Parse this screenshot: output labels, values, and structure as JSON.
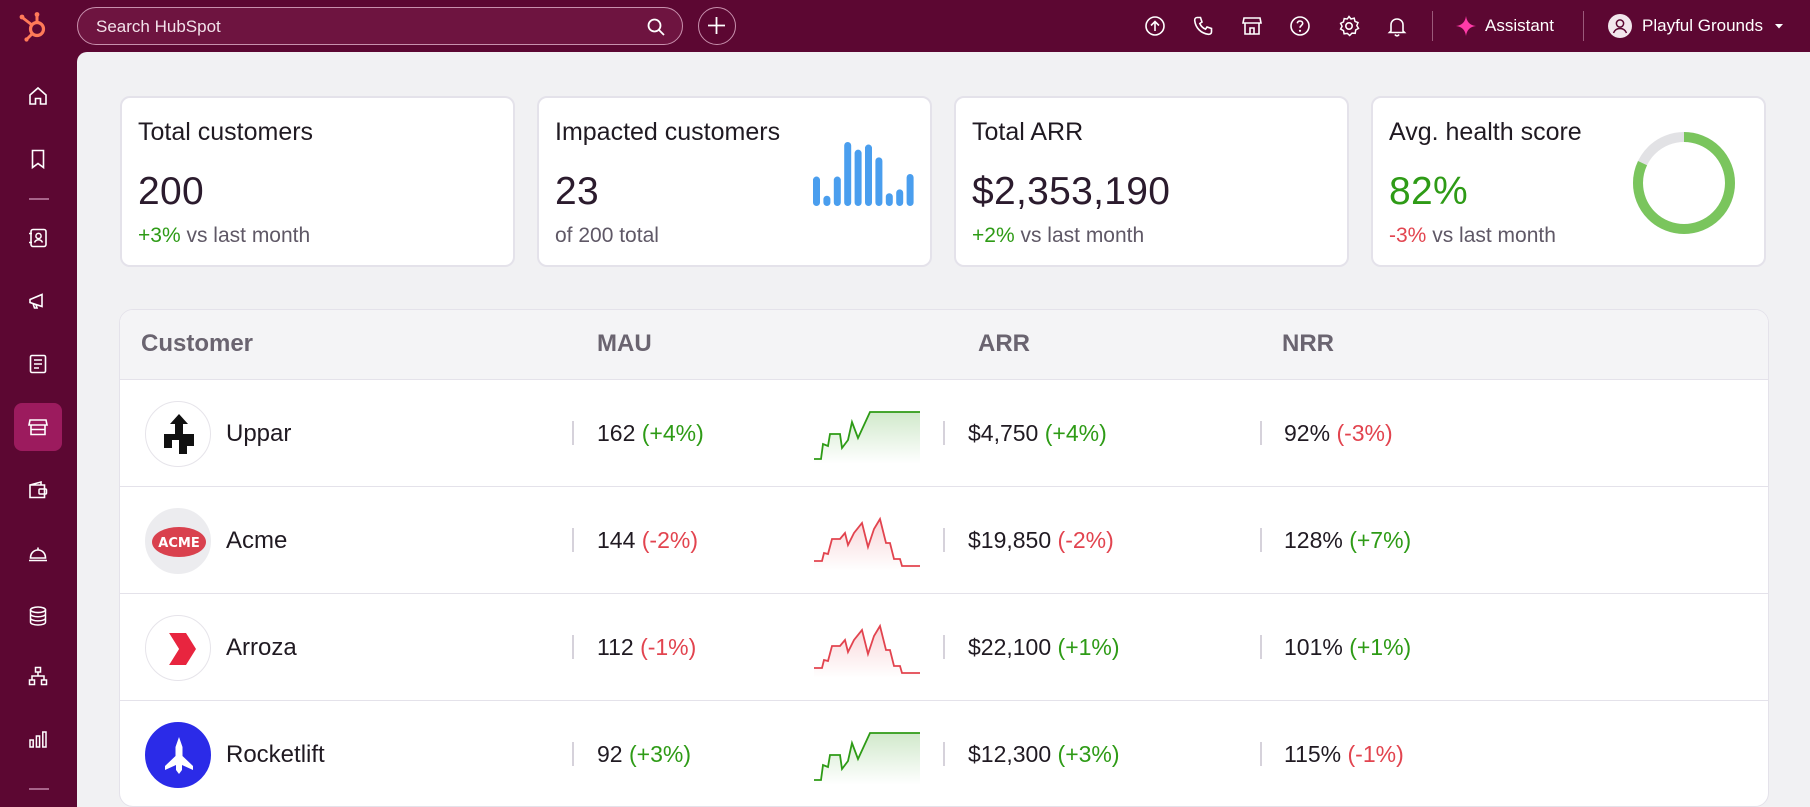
{
  "topbar": {
    "search_placeholder": "Search HubSpot",
    "assistant_label": "Assistant",
    "account_name": "Playful Grounds"
  },
  "cards": [
    {
      "title": "Total customers",
      "value": "200",
      "change": "+3%",
      "change_dir": "up",
      "suffix": "vs last month"
    },
    {
      "title": "Impacted customers",
      "value": "23",
      "subtitle": "of 200 total",
      "bars": [
        0.46,
        0.16,
        0.46,
        1.0,
        0.88,
        0.96,
        0.76,
        0.2,
        0.26,
        0.5
      ]
    },
    {
      "title": "Total ARR",
      "value": "$2,353,190",
      "change": "+2%",
      "change_dir": "up",
      "suffix": "vs last month"
    },
    {
      "title": "Avg. health score",
      "value": "82%",
      "change": "-3%",
      "change_dir": "down",
      "suffix": "vs last month",
      "gauge_fraction": 0.82
    }
  ],
  "table": {
    "headers": {
      "customer": "Customer",
      "mau": "MAU",
      "arr": "ARR",
      "nrr": "NRR"
    },
    "rows": [
      {
        "name": "Uppar",
        "logo_icon": "uppar-logo",
        "mau": "162",
        "mau_change": "(+4%)",
        "mau_dir": "up",
        "trend": "up",
        "arr": "$4,750",
        "arr_change": "(+4%)",
        "arr_dir": "up",
        "nrr": "92%",
        "nrr_change": "(-3%)",
        "nrr_dir": "down"
      },
      {
        "name": "Acme",
        "logo_icon": "acme-logo",
        "logo_text": "ACME",
        "mau": "144",
        "mau_change": "(-2%)",
        "mau_dir": "down",
        "trend": "down",
        "arr": "$19,850",
        "arr_change": "(-2%)",
        "arr_dir": "down",
        "nrr": "128%",
        "nrr_change": "(+7%)",
        "nrr_dir": "up"
      },
      {
        "name": "Arroza",
        "logo_icon": "arroza-logo",
        "mau": "112",
        "mau_change": "(-1%)",
        "mau_dir": "down",
        "trend": "down",
        "arr": "$22,100",
        "arr_change": "(+1%)",
        "arr_dir": "up",
        "nrr": "101%",
        "nrr_change": "(+1%)",
        "nrr_dir": "up"
      },
      {
        "name": "Rocketlift",
        "logo_icon": "rocketlift-logo",
        "mau": "92",
        "mau_change": "(+3%)",
        "mau_dir": "up",
        "trend": "up",
        "arr": "$12,300",
        "arr_change": "(+3%)",
        "arr_dir": "up",
        "nrr": "115%",
        "nrr_change": "(-1%)",
        "nrr_dir": "down"
      }
    ]
  },
  "colors": {
    "brand": "#5c0732",
    "positive": "#2e9b16",
    "negative": "#e2444f",
    "bar_blue": "#4a9eee",
    "gauge_green": "#7ac55d"
  }
}
